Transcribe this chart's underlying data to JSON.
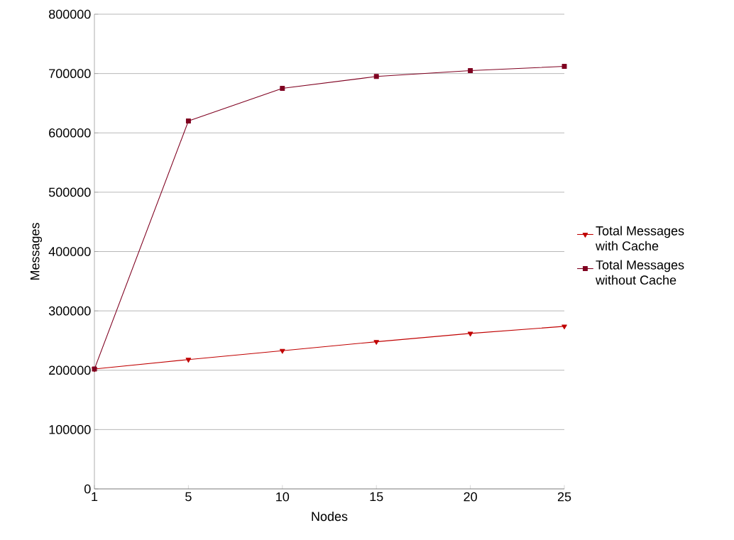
{
  "chart_data": {
    "type": "line",
    "xlabel": "Nodes",
    "ylabel": "Messages",
    "categories": [
      "1",
      "5",
      "10",
      "15",
      "20",
      "25"
    ],
    "series": [
      {
        "name": "Total Messages with Cache",
        "color": "#c00000",
        "marker": "triangle",
        "values": [
          202000,
          218000,
          233000,
          248000,
          262000,
          274000
        ]
      },
      {
        "name": "Total Messages without Cache",
        "color": "#7f0020",
        "marker": "square",
        "values": [
          202000,
          620000,
          675000,
          695000,
          705000,
          712000
        ]
      }
    ],
    "ylim": [
      0,
      800000
    ],
    "yticks": [
      0,
      100000,
      200000,
      300000,
      400000,
      500000,
      600000,
      700000,
      800000
    ],
    "grid": "y",
    "legend": "right"
  }
}
